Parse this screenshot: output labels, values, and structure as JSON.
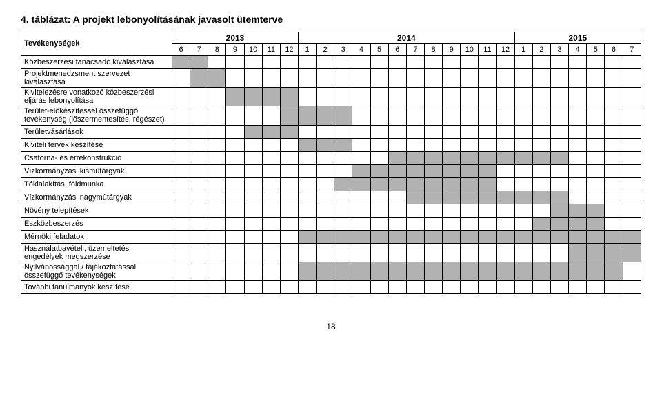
{
  "title": "4. táblázat: A projekt lebonyolításának javasolt ütemterve",
  "activity_header": "Tevékenységek",
  "page_number": "18",
  "years": [
    {
      "label": "2013",
      "months": [
        "6",
        "7",
        "8",
        "9",
        "10",
        "11",
        "12"
      ]
    },
    {
      "label": "2014",
      "months": [
        "1",
        "2",
        "3",
        "4",
        "5",
        "6",
        "7",
        "8",
        "9",
        "10",
        "11",
        "12"
      ]
    },
    {
      "label": "2015",
      "months": [
        "1",
        "2",
        "3",
        "4",
        "5",
        "6",
        "7"
      ]
    }
  ],
  "colors": {
    "fill": "#b2b2b2",
    "border": "#000000",
    "bg": "#ffffff"
  },
  "rows": [
    {
      "label": "Közbeszerzési tanácsadó kiválasztása",
      "fill": [
        0,
        1
      ]
    },
    {
      "label": "Projektmenedzsment szervezet kiválasztása",
      "fill": [
        1,
        2
      ]
    },
    {
      "label": "Kivitelezésre vonatkozó közbeszerzési eljárás lebonyolítása",
      "fill": [
        3,
        4,
        5,
        6
      ]
    },
    {
      "label": "Terület-előkészítéssel összefüggő tevékenység (lőszermentesítés, régészet)",
      "fill": [
        6,
        7,
        8,
        9
      ]
    },
    {
      "label": "Területvásárlások",
      "fill": [
        4,
        5,
        6
      ]
    },
    {
      "label": "Kiviteli tervek készítése",
      "fill": [
        7,
        8,
        9
      ]
    },
    {
      "label": "Csatorna- és érrekonstrukció",
      "fill": [
        12,
        13,
        14,
        15,
        16,
        17,
        18,
        19,
        20,
        21
      ]
    },
    {
      "label": "Vízkormányzási kisműtárgyak",
      "fill": [
        10,
        11,
        12,
        13,
        14,
        15,
        16,
        17
      ]
    },
    {
      "label": "Tókialakítás, földmunka",
      "fill": [
        9,
        10,
        11,
        12,
        13,
        14,
        15,
        16,
        17
      ]
    },
    {
      "label": "Vízkormányzási nagyműtárgyak",
      "fill": [
        13,
        14,
        15,
        16,
        17,
        18,
        19,
        20,
        21
      ]
    },
    {
      "label": "Növény telepítések",
      "fill": [
        21,
        22,
        23
      ]
    },
    {
      "label": "Eszközbeszerzés",
      "fill": [
        20,
        21,
        22,
        23
      ]
    },
    {
      "label": "Mérnöki feladatok",
      "fill": [
        7,
        8,
        9,
        10,
        11,
        12,
        13,
        14,
        15,
        16,
        17,
        18,
        19,
        20,
        21,
        22,
        23,
        24,
        25
      ]
    },
    {
      "label": "Használatbavételi, üzemeltetési engedélyek megszerzése",
      "fill": [
        22,
        23,
        24,
        25
      ]
    },
    {
      "label": "Nyilvánossággal / tájékoztatással összefüggő tevékenységek",
      "fill": [
        7,
        8,
        9,
        10,
        11,
        12,
        13,
        14,
        15,
        16,
        17,
        18,
        19,
        20,
        21,
        22,
        23,
        24
      ]
    },
    {
      "label": "További tanulmányok készítése",
      "fill": []
    }
  ]
}
